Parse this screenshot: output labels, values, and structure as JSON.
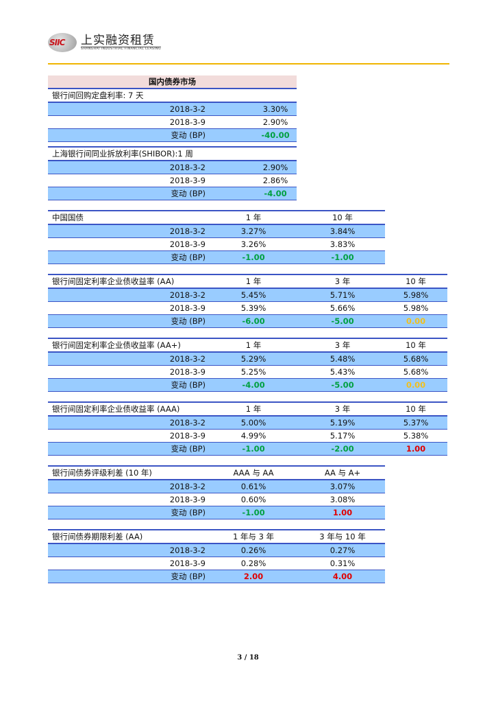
{
  "header": {
    "logo_mark": "SIIC",
    "company_cn": "上实融资租赁",
    "company_en": "SHANGHAI INDUSTRIAL FINANCIAL LEASING"
  },
  "section_title": "国内债券市场",
  "colors": {
    "blue_fill": "#99ccff",
    "header_fill": "#f2dcdb",
    "line": "#3a54c4",
    "negative": "#00a040",
    "positive": "#e00000",
    "zero": "#f0c020",
    "rule": "#f0b400"
  },
  "tables": [
    {
      "title": "银行间回购定盘利率: 7 天",
      "columns": [],
      "rows": [
        {
          "label": "2018-3-2",
          "values": [
            "3.30%"
          ]
        },
        {
          "label": "2018-3-9",
          "values": [
            "2.90%"
          ]
        },
        {
          "label": "变动 (BP)",
          "values": [
            "-40.00"
          ],
          "change": true
        }
      ]
    },
    {
      "title": "上海银行间同业拆放利率(SHIBOR):1 周",
      "columns": [],
      "rows": [
        {
          "label": "2018-3-2",
          "values": [
            "2.90%"
          ]
        },
        {
          "label": "2018-3-9",
          "values": [
            "2.86%"
          ]
        },
        {
          "label": "变动 (BP)",
          "values": [
            "-4.00"
          ],
          "change": true
        }
      ]
    },
    {
      "title": "中国国债",
      "columns": [
        "1 年",
        "10 年"
      ],
      "rows": [
        {
          "label": "2018-3-2",
          "values": [
            "3.27%",
            "3.84%"
          ]
        },
        {
          "label": "2018-3-9",
          "values": [
            "3.26%",
            "3.83%"
          ]
        },
        {
          "label": "变动 (BP)",
          "values": [
            "-1.00",
            "-1.00"
          ],
          "change": true
        }
      ]
    },
    {
      "title": "银行间固定利率企业债收益率 (AA)",
      "columns": [
        "1 年",
        "3 年",
        "10 年"
      ],
      "rows": [
        {
          "label": "2018-3-2",
          "values": [
            "5.45%",
            "5.71%",
            "5.98%"
          ]
        },
        {
          "label": "2018-3-9",
          "values": [
            "5.39%",
            "5.66%",
            "5.98%"
          ]
        },
        {
          "label": "变动 (BP)",
          "values": [
            "-6.00",
            "-5.00",
            "0.00"
          ],
          "change": true
        }
      ]
    },
    {
      "title": "银行间固定利率企业债收益率 (AA+)",
      "columns": [
        "1 年",
        "3 年",
        "10 年"
      ],
      "rows": [
        {
          "label": "2018-3-2",
          "values": [
            "5.29%",
            "5.48%",
            "5.68%"
          ]
        },
        {
          "label": "2018-3-9",
          "values": [
            "5.25%",
            "5.43%",
            "5.68%"
          ]
        },
        {
          "label": "变动 (BP)",
          "values": [
            "-4.00",
            "-5.00",
            "0.00"
          ],
          "change": true
        }
      ]
    },
    {
      "title": "银行间固定利率企业债收益率 (AAA)",
      "columns": [
        "1 年",
        "3 年",
        "10 年"
      ],
      "rows": [
        {
          "label": "2018-3-2",
          "values": [
            "5.00%",
            "5.19%",
            "5.37%"
          ]
        },
        {
          "label": "2018-3-9",
          "values": [
            "4.99%",
            "5.17%",
            "5.38%"
          ]
        },
        {
          "label": "变动 (BP)",
          "values": [
            "-1.00",
            "-2.00",
            "1.00"
          ],
          "change": true
        }
      ]
    },
    {
      "title": "银行间债券评级利差 (10 年)",
      "columns": [
        "AAA 与 AA",
        "AA 与 A+"
      ],
      "rows": [
        {
          "label": "2018-3-2",
          "values": [
            "0.61%",
            "3.07%"
          ]
        },
        {
          "label": "2018-3-9",
          "values": [
            "0.60%",
            "3.08%"
          ]
        },
        {
          "label": "变动 (BP)",
          "values": [
            "-1.00",
            "1.00"
          ],
          "change": true
        }
      ]
    },
    {
      "title": "银行间债券期限利差 (AA)",
      "columns": [
        "1 年与 3 年",
        "3 年与 10 年"
      ],
      "rows": [
        {
          "label": "2018-3-2",
          "values": [
            "0.26%",
            "0.27%"
          ]
        },
        {
          "label": "2018-3-9",
          "values": [
            "0.28%",
            "0.31%"
          ]
        },
        {
          "label": "变动 (BP)",
          "values": [
            "2.00",
            "4.00"
          ],
          "change": true
        }
      ]
    }
  ],
  "footer": {
    "page": "3 / 18"
  }
}
